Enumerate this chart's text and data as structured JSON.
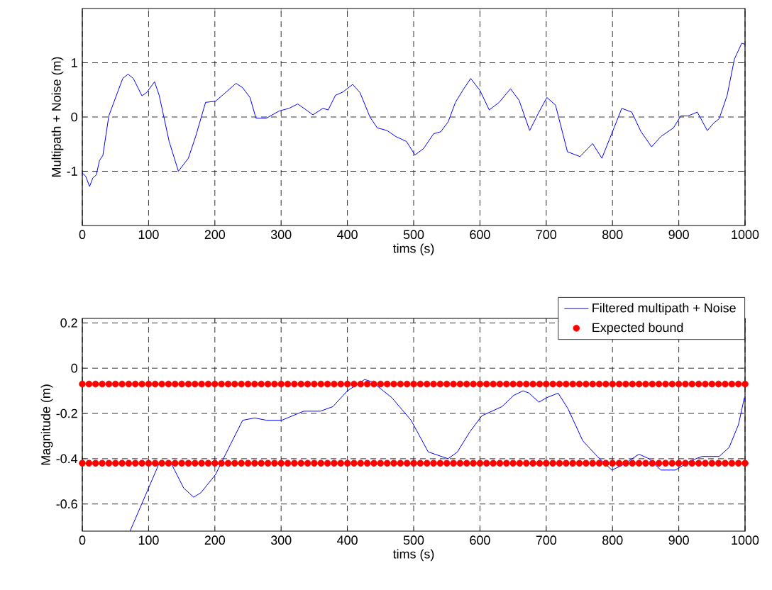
{
  "chart_data": [
    {
      "type": "line",
      "xlabel": "tims (s)",
      "ylabel": "Multipath + Noise (m)",
      "xlim": [
        0,
        1000
      ],
      "ylim": [
        -2,
        2
      ],
      "xticks": [
        0,
        100,
        200,
        300,
        400,
        500,
        600,
        700,
        800,
        900,
        1000
      ],
      "yticks": [
        -1,
        0,
        1
      ],
      "grid": true,
      "series": [
        {
          "color": "#0000ff",
          "x": [
            0,
            5,
            11,
            16,
            21,
            26,
            31,
            40,
            53,
            61,
            69,
            77,
            90,
            97,
            109,
            116,
            131,
            145,
            160,
            171,
            186,
            201,
            216,
            232,
            242,
            253,
            262,
            278,
            297,
            312,
            325,
            338,
            348,
            363,
            371,
            382,
            393,
            408,
            419,
            434,
            445,
            460,
            473,
            489,
            502,
            515,
            530,
            541,
            552,
            563,
            574,
            586,
            600,
            614,
            629,
            646,
            659,
            675,
            689,
            701,
            714,
            732,
            751,
            770,
            784,
            803,
            814,
            829,
            843,
            859,
            873,
            892,
            903,
            914,
            928,
            943,
            953,
            961,
            973,
            984,
            995,
            1000
          ],
          "values": [
            -1.03,
            -1.09,
            -1.28,
            -1.12,
            -1.07,
            -0.8,
            -0.71,
            0.02,
            0.45,
            0.71,
            0.79,
            0.71,
            0.39,
            0.45,
            0.65,
            0.4,
            -0.45,
            -1.0,
            -0.76,
            -0.36,
            0.27,
            0.29,
            0.45,
            0.62,
            0.54,
            0.36,
            -0.02,
            -0.02,
            0.11,
            0.16,
            0.24,
            0.13,
            0.04,
            0.16,
            0.13,
            0.4,
            0.46,
            0.6,
            0.45,
            0.0,
            -0.2,
            -0.25,
            -0.36,
            -0.45,
            -0.7,
            -0.58,
            -0.31,
            -0.27,
            -0.09,
            0.27,
            0.49,
            0.71,
            0.49,
            0.13,
            0.27,
            0.52,
            0.31,
            -0.25,
            0.09,
            0.36,
            0.22,
            -0.64,
            -0.73,
            -0.49,
            -0.76,
            -0.18,
            0.16,
            0.09,
            -0.27,
            -0.55,
            -0.36,
            -0.2,
            0.02,
            0.02,
            0.09,
            -0.25,
            -0.11,
            -0.03,
            0.4,
            1.07,
            1.36,
            1.34
          ]
        }
      ]
    },
    {
      "type": "line",
      "xlabel": "tims (s)",
      "ylabel": "Magnitude (m)",
      "xlim": [
        0,
        1000
      ],
      "ylim": [
        -0.72,
        0.22
      ],
      "xticks": [
        0,
        100,
        200,
        300,
        400,
        500,
        600,
        700,
        800,
        900,
        1000
      ],
      "yticks": [
        -0.6,
        -0.4,
        -0.2,
        0,
        0.2
      ],
      "grid": true,
      "legend": "top right",
      "series": [
        {
          "name": "Filtered multipath + Noise",
          "marker": "none",
          "color": "#0000ff",
          "x": [
            72,
            97,
            116,
            134,
            153,
            168,
            179,
            201,
            223,
            242,
            260,
            278,
            301,
            334,
            359,
            378,
            400,
            426,
            437,
            467,
            496,
            522,
            552,
            566,
            585,
            603,
            633,
            651,
            665,
            674,
            689,
            701,
            718,
            733,
            755,
            777,
            799,
            814,
            840,
            855,
            873,
            895,
            917,
            935,
            961,
            976,
            990,
            999
          ],
          "values": [
            -0.72,
            -0.55,
            -0.42,
            -0.42,
            -0.53,
            -0.57,
            -0.55,
            -0.47,
            -0.34,
            -0.23,
            -0.22,
            -0.23,
            -0.23,
            -0.19,
            -0.19,
            -0.17,
            -0.1,
            -0.05,
            -0.06,
            -0.13,
            -0.23,
            -0.37,
            -0.4,
            -0.37,
            -0.28,
            -0.21,
            -0.17,
            -0.12,
            -0.1,
            -0.11,
            -0.15,
            -0.13,
            -0.11,
            -0.18,
            -0.32,
            -0.39,
            -0.45,
            -0.43,
            -0.38,
            -0.4,
            -0.45,
            -0.45,
            -0.41,
            -0.39,
            -0.39,
            -0.35,
            -0.25,
            -0.13
          ]
        },
        {
          "name": "Expected bound",
          "type": "scatter",
          "marker": "circle",
          "color": "#ff0000",
          "x": [
            0,
            10,
            20,
            30,
            40,
            50,
            60,
            70,
            80,
            90,
            100,
            110,
            120,
            130,
            140,
            150,
            160,
            170,
            180,
            190,
            200,
            210,
            220,
            230,
            240,
            250,
            260,
            270,
            280,
            290,
            300,
            310,
            320,
            330,
            340,
            350,
            360,
            370,
            380,
            390,
            400,
            410,
            420,
            430,
            440,
            450,
            460,
            470,
            480,
            490,
            500,
            510,
            520,
            530,
            540,
            550,
            560,
            570,
            580,
            590,
            600,
            610,
            620,
            630,
            640,
            650,
            660,
            670,
            680,
            690,
            700,
            710,
            720,
            730,
            740,
            750,
            760,
            770,
            780,
            790,
            800,
            810,
            820,
            830,
            840,
            850,
            860,
            870,
            880,
            890,
            900,
            910,
            920,
            930,
            940,
            950,
            960,
            970,
            980,
            990,
            1000,
            0,
            10,
            20,
            30,
            40,
            50,
            60,
            70,
            80,
            90,
            100,
            110,
            120,
            130,
            140,
            150,
            160,
            170,
            180,
            190,
            200,
            210,
            220,
            230,
            240,
            250,
            260,
            270,
            280,
            290,
            300,
            310,
            320,
            330,
            340,
            350,
            360,
            370,
            380,
            390,
            400,
            410,
            420,
            430,
            440,
            450,
            460,
            470,
            480,
            490,
            500,
            510,
            520,
            530,
            540,
            550,
            560,
            570,
            580,
            590,
            600,
            610,
            620,
            630,
            640,
            650,
            660,
            670,
            680,
            690,
            700,
            710,
            720,
            730,
            740,
            750,
            760,
            770,
            780,
            790,
            800,
            810,
            820,
            830,
            840,
            850,
            860,
            870,
            880,
            890,
            900,
            910,
            920,
            930,
            940,
            950,
            960,
            970,
            980,
            990,
            1000
          ],
          "values": [
            -0.07,
            -0.07,
            -0.07,
            -0.07,
            -0.07,
            -0.07,
            -0.07,
            -0.07,
            -0.07,
            -0.07,
            -0.07,
            -0.07,
            -0.07,
            -0.07,
            -0.07,
            -0.07,
            -0.07,
            -0.07,
            -0.07,
            -0.07,
            -0.07,
            -0.07,
            -0.07,
            -0.07,
            -0.07,
            -0.07,
            -0.07,
            -0.07,
            -0.07,
            -0.07,
            -0.07,
            -0.07,
            -0.07,
            -0.07,
            -0.07,
            -0.07,
            -0.07,
            -0.07,
            -0.07,
            -0.07,
            -0.07,
            -0.07,
            -0.07,
            -0.07,
            -0.07,
            -0.07,
            -0.07,
            -0.07,
            -0.07,
            -0.07,
            -0.07,
            -0.07,
            -0.07,
            -0.07,
            -0.07,
            -0.07,
            -0.07,
            -0.07,
            -0.07,
            -0.07,
            -0.07,
            -0.07,
            -0.07,
            -0.07,
            -0.07,
            -0.07,
            -0.07,
            -0.07,
            -0.07,
            -0.07,
            -0.07,
            -0.07,
            -0.07,
            -0.07,
            -0.07,
            -0.07,
            -0.07,
            -0.07,
            -0.07,
            -0.07,
            -0.07,
            -0.07,
            -0.07,
            -0.07,
            -0.07,
            -0.07,
            -0.07,
            -0.07,
            -0.07,
            -0.07,
            -0.07,
            -0.07,
            -0.07,
            -0.07,
            -0.07,
            -0.07,
            -0.07,
            -0.07,
            -0.07,
            -0.07,
            -0.07,
            -0.42,
            -0.42,
            -0.42,
            -0.42,
            -0.42,
            -0.42,
            -0.42,
            -0.42,
            -0.42,
            -0.42,
            -0.42,
            -0.42,
            -0.42,
            -0.42,
            -0.42,
            -0.42,
            -0.42,
            -0.42,
            -0.42,
            -0.42,
            -0.42,
            -0.42,
            -0.42,
            -0.42,
            -0.42,
            -0.42,
            -0.42,
            -0.42,
            -0.42,
            -0.42,
            -0.42,
            -0.42,
            -0.42,
            -0.42,
            -0.42,
            -0.42,
            -0.42,
            -0.42,
            -0.42,
            -0.42,
            -0.42,
            -0.42,
            -0.42,
            -0.42,
            -0.42,
            -0.42,
            -0.42,
            -0.42,
            -0.42,
            -0.42,
            -0.42,
            -0.42,
            -0.42,
            -0.42,
            -0.42,
            -0.42,
            -0.42,
            -0.42,
            -0.42,
            -0.42,
            -0.42,
            -0.42,
            -0.42,
            -0.42,
            -0.42,
            -0.42,
            -0.42,
            -0.42,
            -0.42,
            -0.42,
            -0.42,
            -0.42,
            -0.42,
            -0.42,
            -0.42,
            -0.42,
            -0.42,
            -0.42,
            -0.42,
            -0.42,
            -0.42,
            -0.42,
            -0.42,
            -0.42,
            -0.42,
            -0.42,
            -0.42,
            -0.42,
            -0.42,
            -0.42,
            -0.42,
            -0.42,
            -0.42,
            -0.42,
            -0.42,
            -0.42,
            -0.42,
            -0.42,
            -0.42,
            -0.42,
            -0.42
          ]
        }
      ]
    }
  ]
}
